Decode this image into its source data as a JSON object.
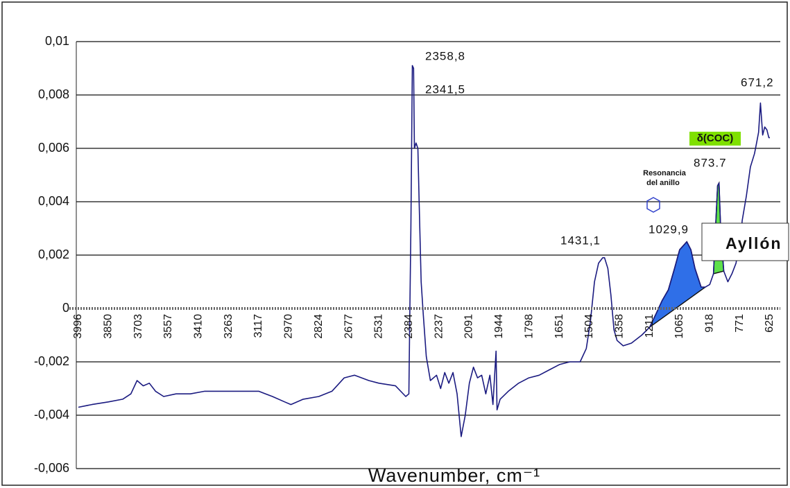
{
  "chart_data": {
    "type": "line",
    "x_label": "Wavenumber, cm⁻¹",
    "color": "#1a1a80",
    "xlim": [
      3996,
      625
    ],
    "xticks": [
      3996,
      3850,
      3703,
      3557,
      3410,
      3263,
      3117,
      2970,
      2824,
      2677,
      2531,
      2384,
      2237,
      2091,
      1944,
      1798,
      1651,
      1504,
      1358,
      1211,
      1065,
      918,
      771,
      625
    ],
    "ylim": [
      -0.006,
      0.01
    ],
    "yticks": [
      {
        "value": -0.006,
        "label": "-0,006"
      },
      {
        "value": -0.004,
        "label": "-0,004"
      },
      {
        "value": -0.002,
        "label": "-0,002"
      },
      0,
      {
        "value": 0.002,
        "label": "0,002"
      },
      {
        "value": 0.004,
        "label": "0,004"
      },
      {
        "value": 0.006,
        "label": "0,006"
      },
      {
        "value": 0.008,
        "label": "0,008"
      },
      {
        "value": 0.01,
        "label": "0,01"
      }
    ],
    "grid": true,
    "x": [
      3996,
      3930,
      3850,
      3780,
      3740,
      3710,
      3680,
      3650,
      3620,
      3580,
      3520,
      3450,
      3380,
      3300,
      3200,
      3117,
      3050,
      2990,
      2960,
      2900,
      2824,
      2760,
      2700,
      2650,
      2580,
      2531,
      2450,
      2400,
      2385,
      2380,
      2375,
      2368,
      2362,
      2358,
      2350,
      2341,
      2335,
      2325,
      2315,
      2300,
      2280,
      2250,
      2230,
      2210,
      2190,
      2170,
      2150,
      2130,
      2110,
      2090,
      2070,
      2050,
      2030,
      2010,
      1990,
      1975,
      1960,
      1955,
      1940,
      1900,
      1850,
      1800,
      1750,
      1700,
      1651,
      1600,
      1550,
      1520,
      1500,
      1480,
      1460,
      1440,
      1431,
      1415,
      1400,
      1385,
      1370,
      1340,
      1300,
      1250,
      1211,
      1180,
      1150,
      1120,
      1090,
      1065,
      1030,
      1010,
      990,
      960,
      940,
      918,
      900,
      890,
      880,
      873,
      865,
      850,
      830,
      810,
      790,
      780,
      771,
      760,
      740,
      720,
      700,
      690,
      680,
      671,
      660,
      650,
      640,
      630,
      625
    ],
    "values": [
      -0.0037,
      -0.0036,
      -0.0035,
      -0.0034,
      -0.0032,
      -0.0027,
      -0.0029,
      -0.0028,
      -0.0031,
      -0.0033,
      -0.0032,
      -0.0032,
      -0.0031,
      -0.0031,
      -0.0031,
      -0.0031,
      -0.0033,
      -0.0035,
      -0.0036,
      -0.0034,
      -0.0033,
      -0.0031,
      -0.0026,
      -0.0025,
      -0.0027,
      -0.0028,
      -0.0029,
      -0.0033,
      -0.0032,
      -0.0001,
      0.003,
      0.0091,
      0.009,
      0.006,
      0.0062,
      0.006,
      0.004,
      0.001,
      -0.0002,
      -0.0018,
      -0.0027,
      -0.0025,
      -0.003,
      -0.0024,
      -0.0028,
      -0.0024,
      -0.0032,
      -0.0048,
      -0.004,
      -0.0028,
      -0.0022,
      -0.0026,
      -0.0025,
      -0.0032,
      -0.0025,
      -0.0036,
      -0.0016,
      -0.0038,
      -0.0034,
      -0.0031,
      -0.0028,
      -0.0026,
      -0.0025,
      -0.0023,
      -0.0021,
      -0.002,
      -0.002,
      -0.0015,
      -0.0005,
      0.001,
      0.0017,
      0.0019,
      0.0019,
      0.0015,
      0.0005,
      -0.0008,
      -0.0012,
      -0.0014,
      -0.0013,
      -0.001,
      -0.0007,
      -0.0002,
      0.0003,
      0.0007,
      0.0015,
      0.0022,
      0.0025,
      0.0022,
      0.0015,
      0.0008,
      0.0008,
      0.0009,
      0.0013,
      0.003,
      0.0046,
      0.0047,
      0.003,
      0.0014,
      0.001,
      0.0013,
      0.0017,
      0.0022,
      0.0024,
      0.0033,
      0.0042,
      0.0053,
      0.0058,
      0.0062,
      0.0066,
      0.0077,
      0.0065,
      0.0068,
      0.0067,
      0.0064,
      0.0064
    ],
    "shaded_regions": [
      {
        "xlim": [
          1211,
          940
        ],
        "color": "#2f6fe8"
      },
      {
        "xlim": [
          900,
          850
        ],
        "color": "#5ee04a"
      }
    ],
    "annotations": [
      "2358,8",
      "2341,5",
      "1431,1",
      "1029,9",
      "873.7",
      "671,2"
    ],
    "group_label": "δ(COC)",
    "ring_note": [
      "Resonancia",
      "del anillo"
    ],
    "watermark": "Ayllón"
  }
}
